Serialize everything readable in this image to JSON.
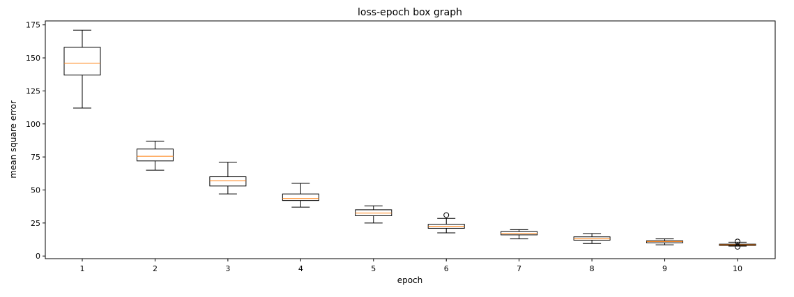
{
  "chart_data": {
    "type": "box",
    "title": "loss-epoch box graph",
    "xlabel": "epoch",
    "ylabel": "mean square error",
    "categories": [
      "1",
      "2",
      "3",
      "4",
      "5",
      "6",
      "7",
      "8",
      "9",
      "10"
    ],
    "yticks": [
      0,
      25,
      50,
      75,
      100,
      125,
      150,
      175
    ],
    "ylim": [
      -2,
      178
    ],
    "grid": false,
    "box_color": "#000000",
    "median_color": "#ff7f0e",
    "boxes": [
      {
        "whislo": 112,
        "q1": 137,
        "med": 146,
        "q3": 158,
        "whishi": 171,
        "fliers": []
      },
      {
        "whislo": 65,
        "q1": 72,
        "med": 75.5,
        "q3": 81,
        "whishi": 87,
        "fliers": []
      },
      {
        "whislo": 47,
        "q1": 53,
        "med": 57,
        "q3": 60,
        "whishi": 71,
        "fliers": []
      },
      {
        "whislo": 37,
        "q1": 42,
        "med": 43.5,
        "q3": 47,
        "whishi": 55,
        "fliers": []
      },
      {
        "whislo": 25,
        "q1": 30.5,
        "med": 32.5,
        "q3": 35,
        "whishi": 38,
        "fliers": []
      },
      {
        "whislo": 17.5,
        "q1": 21,
        "med": 22.5,
        "q3": 24,
        "whishi": 28.5,
        "fliers": [
          31
        ]
      },
      {
        "whislo": 13,
        "q1": 16,
        "med": 17,
        "q3": 18.5,
        "whishi": 20,
        "fliers": []
      },
      {
        "whislo": 9.5,
        "q1": 12,
        "med": 13,
        "q3": 14.5,
        "whishi": 17,
        "fliers": []
      },
      {
        "whislo": 8.5,
        "q1": 10,
        "med": 11,
        "q3": 11.5,
        "whishi": 13,
        "fliers": []
      },
      {
        "whislo": 7.5,
        "q1": 8,
        "med": 8.5,
        "q3": 9,
        "whishi": 10.5,
        "fliers": [
          7,
          11
        ]
      }
    ]
  }
}
